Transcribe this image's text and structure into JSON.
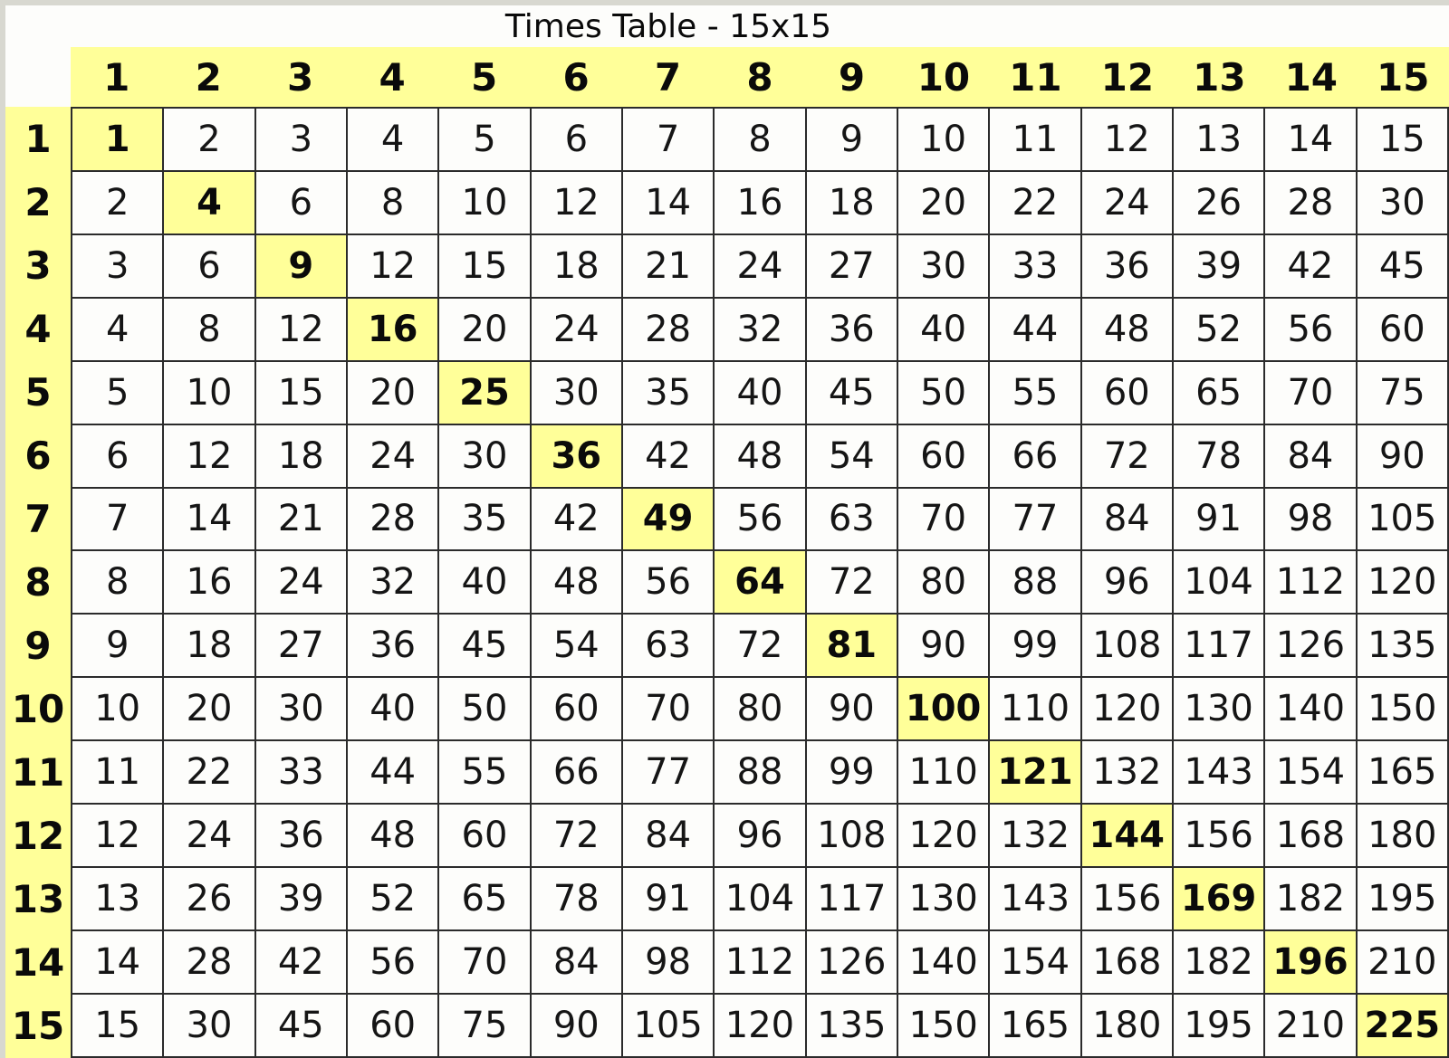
{
  "title": "Times Table - 15x15",
  "colors": {
    "highlight_yellow": "#ffff99",
    "grid_border": "#2b2b2b",
    "cell_background": "#fdfdfb",
    "frame_gray": "#d8d8d0"
  },
  "table": {
    "column_headers": [
      "1",
      "2",
      "3",
      "4",
      "5",
      "6",
      "7",
      "8",
      "9",
      "10",
      "11",
      "12",
      "13",
      "14",
      "15"
    ],
    "row_headers": [
      "1",
      "2",
      "3",
      "4",
      "5",
      "6",
      "7",
      "8",
      "9",
      "10",
      "11",
      "12",
      "13",
      "14",
      "15"
    ],
    "rows": [
      [
        1,
        2,
        3,
        4,
        5,
        6,
        7,
        8,
        9,
        10,
        11,
        12,
        13,
        14,
        15
      ],
      [
        2,
        4,
        6,
        8,
        10,
        12,
        14,
        16,
        18,
        20,
        22,
        24,
        26,
        28,
        30
      ],
      [
        3,
        6,
        9,
        12,
        15,
        18,
        21,
        24,
        27,
        30,
        33,
        36,
        39,
        42,
        45
      ],
      [
        4,
        8,
        12,
        16,
        20,
        24,
        28,
        32,
        36,
        40,
        44,
        48,
        52,
        56,
        60
      ],
      [
        5,
        10,
        15,
        20,
        25,
        30,
        35,
        40,
        45,
        50,
        55,
        60,
        65,
        70,
        75
      ],
      [
        6,
        12,
        18,
        24,
        30,
        36,
        42,
        48,
        54,
        60,
        66,
        72,
        78,
        84,
        90
      ],
      [
        7,
        14,
        21,
        28,
        35,
        42,
        49,
        56,
        63,
        70,
        77,
        84,
        91,
        98,
        105
      ],
      [
        8,
        16,
        24,
        32,
        40,
        48,
        56,
        64,
        72,
        80,
        88,
        96,
        104,
        112,
        120
      ],
      [
        9,
        18,
        27,
        36,
        45,
        54,
        63,
        72,
        81,
        90,
        99,
        108,
        117,
        126,
        135
      ],
      [
        10,
        20,
        30,
        40,
        50,
        60,
        70,
        80,
        90,
        100,
        110,
        120,
        130,
        140,
        150
      ],
      [
        11,
        22,
        33,
        44,
        55,
        66,
        77,
        88,
        99,
        110,
        121,
        132,
        143,
        154,
        165
      ],
      [
        12,
        24,
        36,
        48,
        60,
        72,
        84,
        96,
        108,
        120,
        132,
        144,
        156,
        168,
        180
      ],
      [
        13,
        26,
        39,
        52,
        65,
        78,
        91,
        104,
        117,
        130,
        143,
        156,
        169,
        182,
        195
      ],
      [
        14,
        28,
        42,
        56,
        70,
        84,
        98,
        112,
        126,
        140,
        154,
        168,
        182,
        196,
        210
      ],
      [
        15,
        30,
        45,
        60,
        75,
        90,
        105,
        120,
        135,
        150,
        165,
        180,
        195,
        210,
        225
      ]
    ],
    "highlight_rule": "diagonal-squares"
  }
}
